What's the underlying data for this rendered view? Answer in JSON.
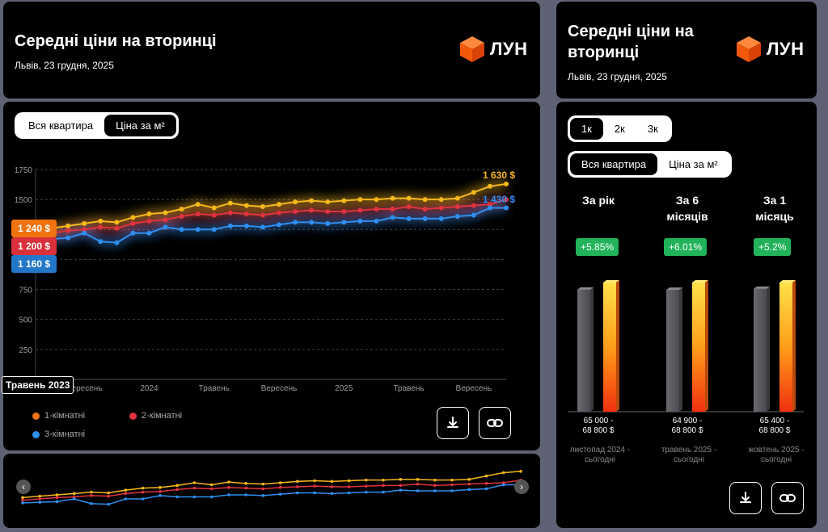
{
  "left": {
    "title": "Середні ціни на вторинці",
    "subtitle": "Львів, 23 грудня, 2025",
    "logo": "ЛУН",
    "toggle": [
      "Вся квартира",
      "Ціна за м²"
    ],
    "hover_x_label": "Травень 2023",
    "price_tags": [
      "1 240 $",
      "1 200 $",
      "1 160 $"
    ],
    "end_labels": {
      "one": "1 630 $",
      "three": "1 430 $"
    },
    "legend": [
      "1-кімнатні",
      "2-кімнатні",
      "3-кімнатні"
    ],
    "icons": [
      "download-icon",
      "link-icon"
    ]
  },
  "right": {
    "title": "Середні ціни на вторинці",
    "subtitle": "Львів, 23 грудня, 2025",
    "logo": "ЛУН",
    "room_toggle": [
      "1к",
      "2к",
      "3к"
    ],
    "mode_toggle": [
      "Вся квартира",
      "Ціна за м²"
    ],
    "columns": [
      {
        "title_l1": "За рік",
        "title_l2": "",
        "change": "+5.85%",
        "range_l1": "65 000 -",
        "range_l2": "68 800 $",
        "period_l1": "листопад 2024 -",
        "period_l2": "сьогодні",
        "before": 65000,
        "after": 68800
      },
      {
        "title_l1": "За 6",
        "title_l2": "місяців",
        "change": "+6.01%",
        "range_l1": "64 900 -",
        "range_l2": "68 800 $",
        "period_l1": "травень 2025 -",
        "period_l2": "сьогодні",
        "before": 64900,
        "after": 68800
      },
      {
        "title_l1": "За 1",
        "title_l2": "місяць",
        "change": "+5.2%",
        "range_l1": "65 400 -",
        "range_l2": "68 800 $",
        "period_l1": "жовтень 2025 -",
        "period_l2": "сьогодні",
        "before": 65400,
        "after": 68800
      }
    ]
  },
  "colors": {
    "one": "#f5b81c",
    "two": "#e0333f",
    "three": "#2f8ff0",
    "tag_one": "#f0730f",
    "tag_two": "#d9303c",
    "tag_three": "#2277c8",
    "badge": "#22b35a"
  },
  "chart_data": [
    {
      "type": "line",
      "yticks": [
        250,
        500,
        750,
        1000,
        1250,
        1500,
        1750
      ],
      "ylim": [
        0,
        1750
      ],
      "xtick_labels": [
        "Вересень",
        "2024",
        "Травень",
        "Вересень",
        "2025",
        "Травень",
        "Вересень"
      ],
      "xtick_index": [
        3,
        7,
        11,
        15,
        19,
        23,
        27
      ],
      "series": [
        {
          "name": "1-кімнатні",
          "color": "#f5b81c",
          "values": [
            1240,
            1260,
            1280,
            1300,
            1320,
            1310,
            1350,
            1380,
            1390,
            1420,
            1460,
            1430,
            1470,
            1450,
            1440,
            1460,
            1480,
            1490,
            1480,
            1490,
            1500,
            1500,
            1510,
            1510,
            1500,
            1500,
            1510,
            1560,
            1610,
            1630
          ]
        },
        {
          "name": "2-кімнатні",
          "color": "#e0333f",
          "values": [
            1200,
            1220,
            1240,
            1250,
            1270,
            1260,
            1300,
            1320,
            1330,
            1360,
            1380,
            1370,
            1390,
            1380,
            1370,
            1390,
            1400,
            1410,
            1400,
            1400,
            1410,
            1420,
            1420,
            1440,
            1420,
            1430,
            1440,
            1450,
            1460,
            1500
          ]
        },
        {
          "name": "3-кімнатні",
          "color": "#2f8ff0",
          "values": [
            1160,
            1170,
            1180,
            1220,
            1150,
            1140,
            1220,
            1220,
            1270,
            1250,
            1250,
            1250,
            1280,
            1280,
            1270,
            1290,
            1310,
            1310,
            1300,
            1310,
            1320,
            1320,
            1350,
            1340,
            1340,
            1340,
            1360,
            1370,
            1430,
            1430
          ]
        }
      ]
    },
    {
      "type": "bar",
      "categories": [
        "За рік",
        "За 6 місяців",
        "За 1 місяць"
      ],
      "series": [
        {
          "values": [
            65000,
            64900,
            65400
          ]
        },
        {
          "values": [
            68800,
            68800,
            68800
          ]
        }
      ]
    }
  ]
}
